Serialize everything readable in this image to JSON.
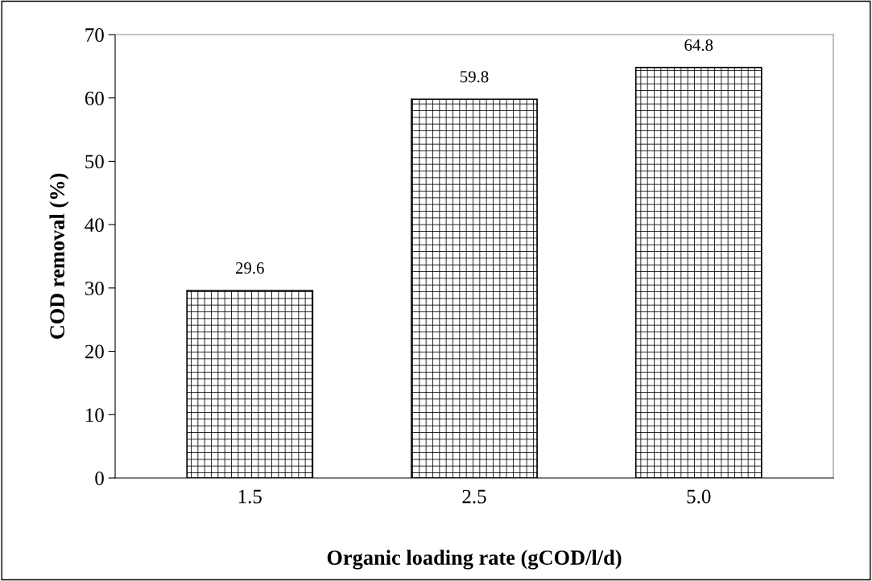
{
  "chart_data": {
    "type": "bar",
    "xlabel": "Organic loading rate (gCOD/l/d)",
    "ylabel": "COD removal (%)",
    "categories": [
      "1.5",
      "2.5",
      "5.0"
    ],
    "values": [
      29.6,
      59.8,
      64.8
    ],
    "ylim": [
      0,
      70
    ],
    "yticks": [
      0,
      10,
      20,
      30,
      40,
      50,
      60,
      70
    ],
    "data_labels": true,
    "grid": false,
    "legend": false
  }
}
